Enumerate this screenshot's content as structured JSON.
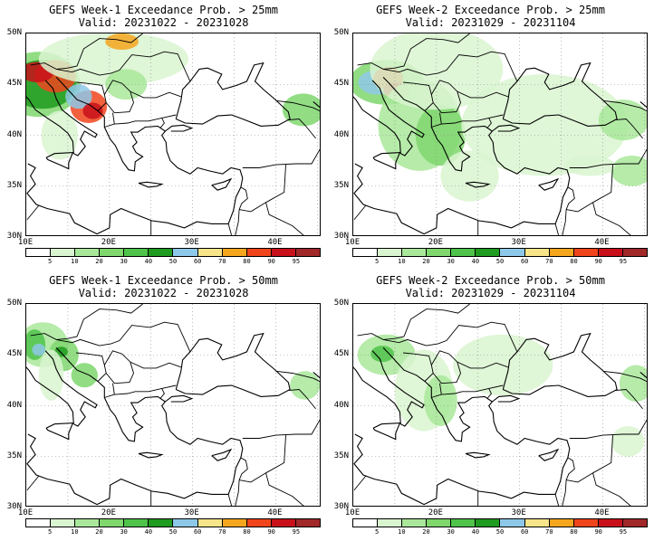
{
  "panels": [
    {
      "line1": "GEFS Week-1 Exceedance Prob. > 25mm",
      "line2": "Valid: 20231022 - 20231028",
      "week": 1,
      "threshold": 25
    },
    {
      "line1": "GEFS Week-2 Exceedance Prob. > 25mm",
      "line2": "Valid: 20231029 - 20231104",
      "week": 2,
      "threshold": 25
    },
    {
      "line1": "GEFS Week-1 Exceedance Prob. > 50mm",
      "line2": "Valid: 20231022 - 20231028",
      "week": 1,
      "threshold": 50
    },
    {
      "line1": "GEFS Week-2 Exceedance Prob. > 50mm",
      "line2": "Valid: 20231029 - 20231104",
      "week": 2,
      "threshold": 50
    }
  ],
  "lat_labels": [
    "50N",
    "45N",
    "40N",
    "35N",
    "30N"
  ],
  "lon_labels": [
    "10E",
    "20E",
    "30E",
    "40E"
  ],
  "colorbar": {
    "labels": [
      "5",
      "10",
      "20",
      "30",
      "40",
      "50",
      "60",
      "70",
      "80",
      "90",
      "95"
    ],
    "colors": [
      "#ffffff",
      "#d9f5d0",
      "#a9e89a",
      "#7fd76e",
      "#4fc34a",
      "#1f9b1f",
      "#8ec8e8",
      "#f8e58a",
      "#f6a61e",
      "#f0441c",
      "#c8101a",
      "#a02828"
    ]
  },
  "map_colors": {
    "land": "#ffffff",
    "coast": "#000000",
    "grid": "#8c8c8c"
  }
}
